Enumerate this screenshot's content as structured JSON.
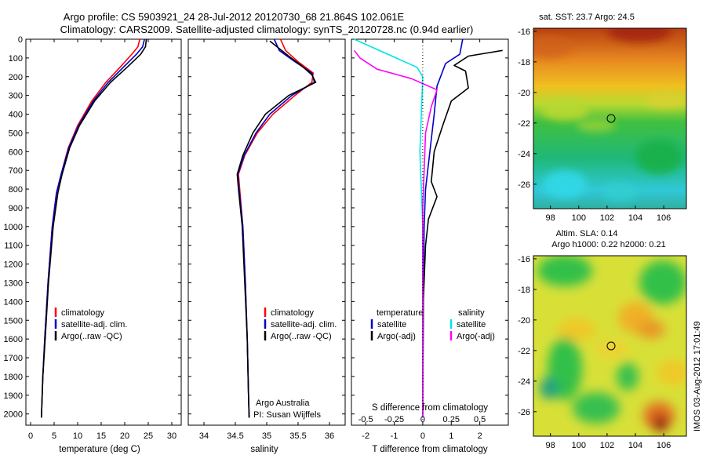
{
  "titles": {
    "line1": "Argo profile: CS 5903921_24 28-Jul-2012 20120730_68 21.864S 102.061E",
    "line2": "Climatology: CARS2009. Satellite-adjusted climatology: synTS_20120728.nc (0.94d earlier)"
  },
  "colors": {
    "climatology": "#ff0000",
    "satellite": "#0000cc",
    "argo": "#000000",
    "satellite_s": "#00e5e5",
    "argo_s": "#ff00ff"
  },
  "chart_data": [
    {
      "id": "temperature",
      "type": "line",
      "xlabel": "temperature (deg C)",
      "ylim": [
        2060,
        0
      ],
      "xlim": [
        -1,
        32
      ],
      "xticks": [
        "0",
        "5",
        "10",
        "15",
        "20",
        "25",
        "30"
      ],
      "yticks": [
        "0",
        "100",
        "200",
        "300",
        "400",
        "500",
        "600",
        "700",
        "800",
        "900",
        "1000",
        "1100",
        "1200",
        "1300",
        "1400",
        "1500",
        "1600",
        "1700",
        "1800",
        "1900",
        "2000"
      ],
      "legend": [
        "climatology",
        "satellite-adj. clim.",
        "Argo(..raw -QC)"
      ],
      "series": [
        {
          "name": "climatology",
          "color": "climatology",
          "points": [
            [
              23.2,
              0
            ],
            [
              22.8,
              40
            ],
            [
              21.5,
              80
            ],
            [
              19,
              150
            ],
            [
              16,
              230
            ],
            [
              13,
              330
            ],
            [
              10,
              460
            ],
            [
              8,
              580
            ],
            [
              6.5,
              720
            ],
            [
              5.5,
              820
            ],
            [
              4.6,
              1000
            ],
            [
              3.7,
              1300
            ],
            [
              3,
              1600
            ],
            [
              2.6,
              1800
            ],
            [
              2.3,
              2020
            ]
          ]
        },
        {
          "name": "satellite-adj. clim.",
          "color": "satellite",
          "points": [
            [
              24.2,
              0
            ],
            [
              23.8,
              40
            ],
            [
              22.5,
              80
            ],
            [
              19.7,
              150
            ],
            [
              16.5,
              230
            ],
            [
              13.3,
              330
            ],
            [
              10.2,
              460
            ],
            [
              8.1,
              580
            ],
            [
              6.5,
              720
            ],
            [
              5.5,
              820
            ],
            [
              4.6,
              1000
            ],
            [
              3.7,
              1300
            ],
            [
              3,
              1600
            ],
            [
              2.6,
              1800
            ],
            [
              2.3,
              2020
            ]
          ]
        },
        {
          "name": "Argo(..raw -QC)",
          "color": "argo",
          "points": [
            [
              24.6,
              0
            ],
            [
              24.4,
              40
            ],
            [
              23.4,
              80
            ],
            [
              20.5,
              150
            ],
            [
              17,
              230
            ],
            [
              13.6,
              330
            ],
            [
              10.4,
              460
            ],
            [
              8.3,
              580
            ],
            [
              6.7,
              720
            ],
            [
              5.8,
              820
            ],
            [
              4.8,
              1000
            ],
            [
              3.8,
              1300
            ],
            [
              3.1,
              1600
            ],
            [
              2.6,
              1800
            ],
            [
              2.3,
              2020
            ]
          ]
        }
      ]
    },
    {
      "id": "salinity",
      "type": "line",
      "xlabel": "salinity",
      "ylim": [
        2060,
        0
      ],
      "xlim": [
        33.75,
        36.25
      ],
      "xticks": [
        "34",
        "34.5",
        "35",
        "35.5",
        "36"
      ],
      "legend": [
        "climatology",
        "satellite-adj. clim.",
        "Argo(..raw -QC)"
      ],
      "annotation": [
        "Argo Australia",
        "PI: Susan Wijffels"
      ],
      "series": [
        {
          "name": "climatology",
          "color": "climatology",
          "points": [
            [
              35.22,
              0
            ],
            [
              35.3,
              60
            ],
            [
              35.5,
              120
            ],
            [
              35.74,
              180
            ],
            [
              35.72,
              230
            ],
            [
              35.45,
              300
            ],
            [
              35.1,
              400
            ],
            [
              34.85,
              500
            ],
            [
              34.65,
              620
            ],
            [
              34.55,
              720
            ],
            [
              34.57,
              800
            ],
            [
              34.62,
              1000
            ],
            [
              34.66,
              1300
            ],
            [
              34.69,
              1600
            ],
            [
              34.71,
              1900
            ],
            [
              34.72,
              2020
            ]
          ]
        },
        {
          "name": "satellite-adj. clim.",
          "color": "satellite",
          "points": [
            [
              35.12,
              0
            ],
            [
              35.2,
              60
            ],
            [
              35.45,
              120
            ],
            [
              35.72,
              180
            ],
            [
              35.76,
              230
            ],
            [
              35.4,
              300
            ],
            [
              35.05,
              400
            ],
            [
              34.83,
              500
            ],
            [
              34.64,
              620
            ],
            [
              34.54,
              720
            ],
            [
              34.56,
              800
            ],
            [
              34.62,
              1000
            ],
            [
              34.66,
              1300
            ],
            [
              34.69,
              1600
            ],
            [
              34.71,
              1900
            ],
            [
              34.72,
              2020
            ]
          ]
        },
        {
          "name": "Argo(..raw -QC)",
          "color": "argo",
          "points": [
            [
              35.05,
              10
            ],
            [
              35.2,
              50
            ],
            [
              35.35,
              90
            ],
            [
              35.55,
              140
            ],
            [
              35.72,
              190
            ],
            [
              35.78,
              230
            ],
            [
              35.35,
              300
            ],
            [
              34.98,
              400
            ],
            [
              34.78,
              500
            ],
            [
              34.62,
              620
            ],
            [
              34.53,
              720
            ],
            [
              34.55,
              800
            ],
            [
              34.61,
              1000
            ],
            [
              34.65,
              1300
            ],
            [
              34.69,
              1600
            ],
            [
              34.71,
              1900
            ],
            [
              34.72,
              2020
            ]
          ]
        }
      ]
    },
    {
      "id": "difference",
      "type": "line",
      "xlabel": "T difference from climatology",
      "top_label": "S difference from climatology",
      "ylim": [
        2060,
        0
      ],
      "xlim": [
        -2.5,
        3
      ],
      "xticks": [
        "-2",
        "-1",
        "0",
        "1",
        "2"
      ],
      "top_ticks": [
        "-0.5",
        "-0.25",
        "0",
        "0.25",
        "0.5"
      ],
      "legend_left_header": "temperature",
      "legend_right_header": "salinity",
      "legend": [
        "satellite",
        "Argo(-adj)",
        "satellite",
        "Argo(-adj)"
      ],
      "series": [
        {
          "name": "temperature satellite",
          "color": "satellite",
          "points": [
            [
              1.4,
              0
            ],
            [
              1.3,
              80
            ],
            [
              0.8,
              130
            ],
            [
              0.5,
              250
            ],
            [
              0.4,
              400
            ],
            [
              0.25,
              600
            ],
            [
              0.1,
              800
            ],
            [
              0.05,
              1000
            ],
            [
              0.02,
              1400
            ],
            [
              0,
              2020
            ]
          ]
        },
        {
          "name": "temperature Argo(-adj)",
          "color": "argo",
          "points": [
            [
              2.8,
              60
            ],
            [
              1.6,
              90
            ],
            [
              1.1,
              140
            ],
            [
              1.5,
              170
            ],
            [
              1.6,
              260
            ],
            [
              1.0,
              330
            ],
            [
              0.7,
              460
            ],
            [
              0.4,
              600
            ],
            [
              0.3,
              760
            ],
            [
              0.5,
              840
            ],
            [
              0.2,
              960
            ],
            [
              0.1,
              1100
            ],
            [
              0.02,
              1400
            ],
            [
              0,
              2020
            ]
          ]
        },
        {
          "name": "salinity satellite",
          "color": "satellite_s",
          "points": [
            [
              -2.4,
              0
            ],
            [
              -0.2,
              150
            ],
            [
              0,
              200
            ],
            [
              -0.05,
              400
            ],
            [
              -0.1,
              600
            ],
            [
              -0.05,
              800
            ],
            [
              0,
              1000
            ],
            [
              0,
              2020
            ]
          ]
        },
        {
          "name": "salinity Argo(-adj)",
          "color": "argo_s",
          "points": [
            [
              -2.4,
              60
            ],
            [
              -2.2,
              100
            ],
            [
              -1.6,
              160
            ],
            [
              -0.4,
              210
            ],
            [
              0.5,
              270
            ],
            [
              0.3,
              360
            ],
            [
              0.1,
              500
            ],
            [
              0.05,
              700
            ],
            [
              0,
              900
            ],
            [
              0,
              2020
            ]
          ]
        }
      ]
    }
  ],
  "maps": [
    {
      "id": "sst",
      "title": "sat. SST: 23.7 Argo: 24.5",
      "xticks": [
        "98",
        "100",
        "102",
        "104",
        "106"
      ],
      "yticks": [
        "-16",
        "-18",
        "-20",
        "-22",
        "-24",
        "-26"
      ],
      "marker": [
        102.06,
        -21.86
      ]
    },
    {
      "id": "sla",
      "title_line1": "Altim. SLA: 0.14",
      "title_line2": "Argo h1000: 0.22 h2000: 0.21",
      "xticks": [
        "98",
        "100",
        "102",
        "104",
        "106"
      ],
      "yticks": [
        "-16",
        "-18",
        "-20",
        "-22",
        "-24",
        "-26"
      ],
      "marker": [
        102.06,
        -21.86
      ]
    }
  ],
  "footer": {
    "stamp": "IMOS 03-Aug-2012 17:01:49"
  }
}
